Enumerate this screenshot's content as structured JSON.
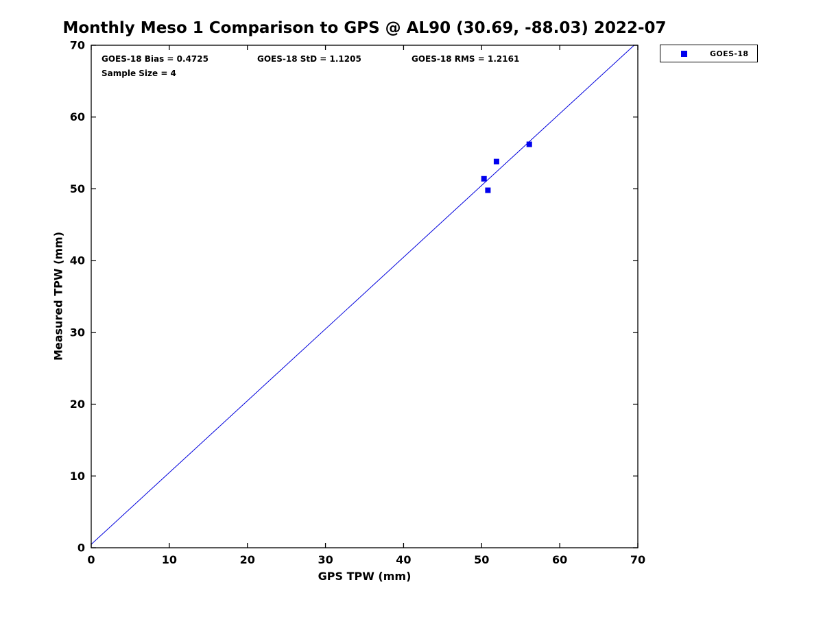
{
  "chart_data": {
    "type": "scatter",
    "title": "Monthly Meso 1 Comparison to GPS @ AL90 (30.69, -88.03) 2022-07",
    "xlabel": "GPS TPW (mm)",
    "ylabel": "Measured TPW (mm)",
    "xlim": [
      0,
      70
    ],
    "ylim": [
      0,
      70
    ],
    "xticks": [
      0,
      10,
      20,
      30,
      40,
      50,
      60,
      70
    ],
    "yticks": [
      0,
      10,
      20,
      30,
      40,
      50,
      60,
      70
    ],
    "grid": false,
    "series": [
      {
        "name": "GOES-18",
        "marker": "square",
        "color": "#0000ee",
        "points": [
          {
            "x": 50.3,
            "y": 51.4
          },
          {
            "x": 50.8,
            "y": 49.8
          },
          {
            "x": 51.9,
            "y": 53.8
          },
          {
            "x": 56.1,
            "y": 56.2
          }
        ]
      }
    ],
    "fit_line": {
      "slope": 1,
      "intercept": 0.4725,
      "color": "#0000dd"
    },
    "annotations": [
      {
        "text": "GOES-18 Bias = 0.4725"
      },
      {
        "text": "GOES-18 StD = 1.1205"
      },
      {
        "text": "GOES-18 RMS = 1.2161"
      },
      {
        "text": "Sample Size = 4"
      }
    ],
    "legend": {
      "position": "top-right",
      "entries": [
        {
          "label": "GOES-18",
          "marker": "square",
          "color": "#0000ee"
        }
      ]
    },
    "colors": {
      "axis": "#000000",
      "background": "#ffffff"
    }
  }
}
